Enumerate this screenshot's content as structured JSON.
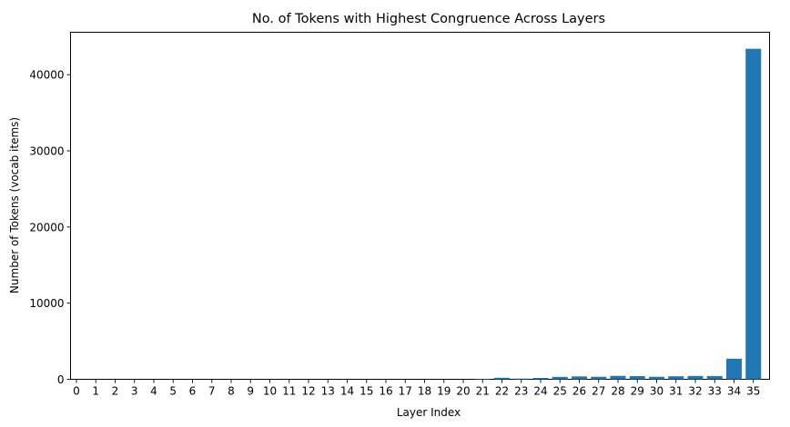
{
  "chart_data": {
    "type": "bar",
    "title": "No. of Tokens with Highest Congruence Across Layers",
    "xlabel": "Layer Index",
    "ylabel": "Number of Tokens (vocab items)",
    "categories": [
      "0",
      "1",
      "2",
      "3",
      "4",
      "5",
      "6",
      "7",
      "8",
      "9",
      "10",
      "11",
      "12",
      "13",
      "14",
      "15",
      "16",
      "17",
      "18",
      "19",
      "20",
      "21",
      "22",
      "23",
      "24",
      "25",
      "26",
      "27",
      "28",
      "29",
      "30",
      "31",
      "32",
      "33",
      "34",
      "35"
    ],
    "values": [
      0,
      0,
      0,
      0,
      0,
      0,
      0,
      0,
      0,
      0,
      0,
      0,
      0,
      0,
      0,
      0,
      0,
      0,
      0,
      0,
      0,
      60,
      200,
      90,
      180,
      320,
      380,
      330,
      450,
      420,
      330,
      400,
      440,
      430,
      2700,
      43400
    ],
    "ylim": [
      0,
      45570
    ],
    "yticks": [
      0,
      10000,
      20000,
      30000,
      40000
    ],
    "bar_color": "#1f77b4",
    "grid": false
  }
}
